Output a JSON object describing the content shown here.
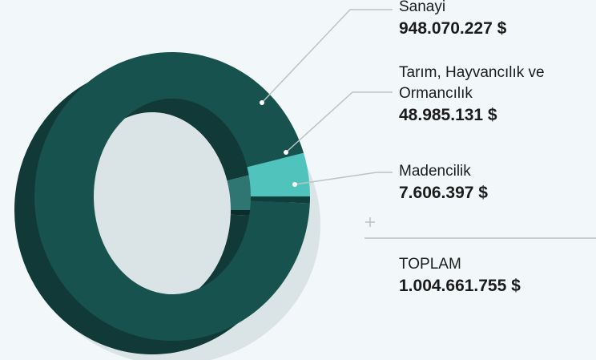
{
  "chart_data": {
    "type": "pie",
    "donut": true,
    "categories": [
      "Sanayi",
      "Tarım, Hayvancılık ve Ormancılık",
      "Madencilik"
    ],
    "values": [
      948070227,
      48985131,
      7606397
    ],
    "value_labels": [
      "948.070.227 $",
      "48.985.131 $",
      "7.606.397 $"
    ],
    "colors": [
      "#17524f",
      "#4fc3bc",
      "#0f3f3c"
    ],
    "total_title": "TOPLAM",
    "total": 1004661755,
    "total_label": "1.004.661.755 $"
  }
}
